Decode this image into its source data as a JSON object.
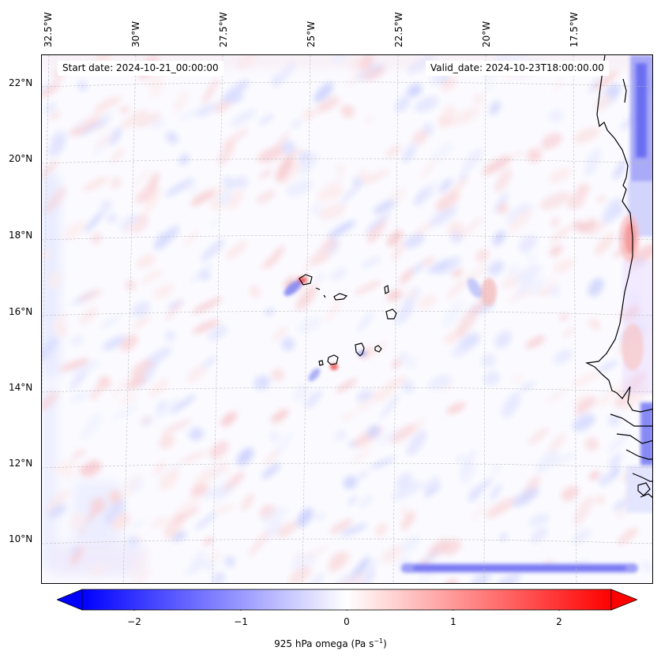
{
  "header": {
    "start_date": "Start date: 2024-10-21_00:00:00",
    "valid_date": "Valid_date: 2024-10-23T18:00:00.00"
  },
  "axes": {
    "lon_labels": [
      "32.5°W",
      "30°W",
      "27.5°W",
      "25°W",
      "22.5°W",
      "20°W",
      "17.5°W"
    ],
    "lat_labels": [
      "22°N",
      "20°N",
      "18°N",
      "16°N",
      "14°N",
      "12°N",
      "10°N"
    ]
  },
  "colorbar": {
    "ticks": [
      "−2",
      "−1",
      "0",
      "1",
      "2"
    ],
    "label": "925 hPa omega (Pa s",
    "label_exp": "−1",
    "label_close": ")",
    "colormap": "bwr",
    "range": [
      -2.7,
      2.7
    ],
    "extend": "both"
  },
  "map": {
    "field": "925 hPa omega",
    "region": "Cabo Verde / West Africa coast",
    "features": [
      "coastline",
      "islands",
      "graticule"
    ]
  }
}
